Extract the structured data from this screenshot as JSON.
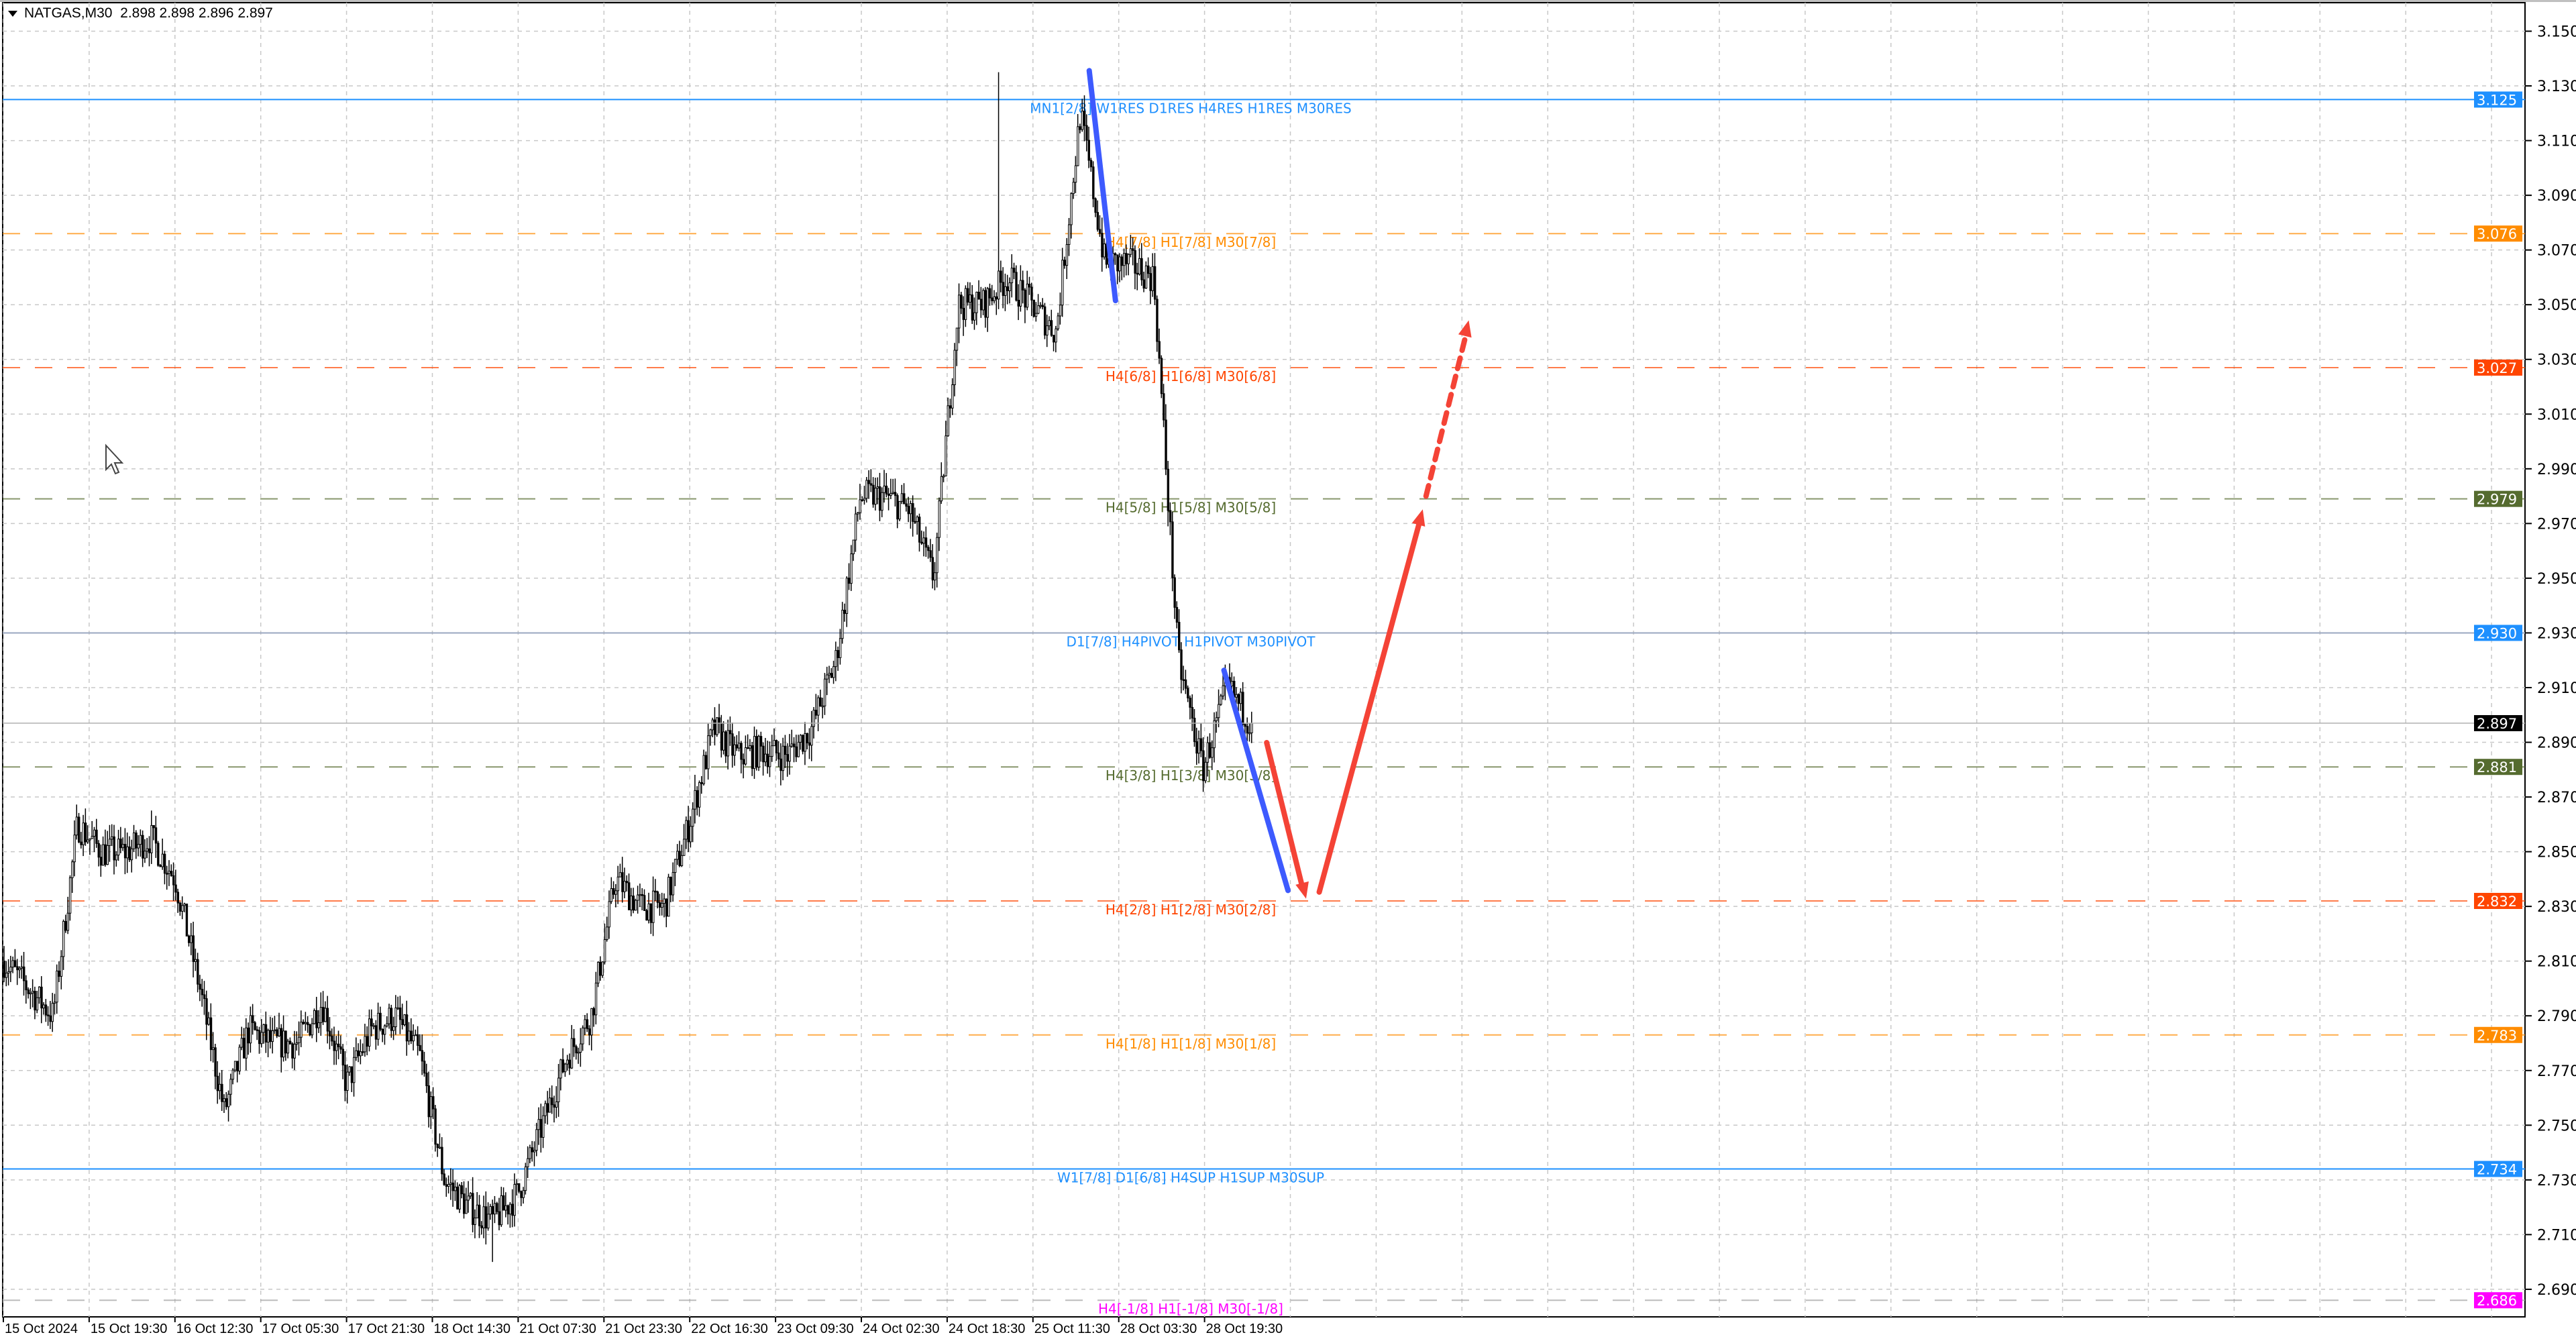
{
  "header": {
    "symbol": "NATGAS,M30",
    "ohlc": "2.898 2.898 2.896 2.897"
  },
  "chart_data": {
    "type": "candlestick",
    "symbol": "NATGAS",
    "timeframe": "M30",
    "ylim": [
      2.68,
      3.16
    ],
    "y_ticks": [
      "3.150",
      "3.130",
      "3.110",
      "3.090",
      "3.070",
      "3.050",
      "3.030",
      "3.010",
      "2.990",
      "2.970",
      "2.950",
      "2.930",
      "2.910",
      "2.890",
      "2.870",
      "2.850",
      "2.830",
      "2.810",
      "2.790",
      "2.770",
      "2.750",
      "2.730",
      "2.710",
      "2.690"
    ],
    "x_ticks": [
      "15 Oct 2024",
      "15 Oct 19:30",
      "16 Oct 12:30",
      "17 Oct 05:30",
      "17 Oct 21:30",
      "18 Oct 14:30",
      "21 Oct 07:30",
      "21 Oct 23:30",
      "22 Oct 16:30",
      "23 Oct 09:30",
      "24 Oct 02:30",
      "24 Oct 18:30",
      "25 Oct 11:30",
      "28 Oct 03:30",
      "28 Oct 19:30"
    ],
    "approx_close_path": [
      2.81,
      2.8,
      2.79,
      2.86,
      2.85,
      2.85,
      2.855,
      2.84,
      2.8,
      2.755,
      2.785,
      2.78,
      2.78,
      2.795,
      2.765,
      2.785,
      2.79,
      2.775,
      2.73,
      2.72,
      2.715,
      2.725,
      2.75,
      2.775,
      2.79,
      2.84,
      2.83,
      2.83,
      2.86,
      2.895,
      2.885,
      2.887,
      2.885,
      2.895,
      2.92,
      2.98,
      2.98,
      2.975,
      2.95,
      3.05,
      3.05,
      3.06,
      3.05,
      3.04,
      3.12,
      3.065,
      3.065,
      3.06,
      2.92,
      2.88,
      2.91,
      2.897
    ],
    "period_high": 3.135,
    "period_low": 2.7,
    "current_price": {
      "value": "2.897",
      "color": "#000000"
    },
    "levels": [
      {
        "price": 3.125,
        "price_label": "3.125",
        "color": "#1e90ff",
        "style": "solid",
        "label": "MN1[2/8] W1RES D1RES H4RES H1RES M30RES"
      },
      {
        "price": 3.076,
        "price_label": "3.076",
        "color": "#ff8c00",
        "style": "dashed",
        "label": "H4[7/8] H1[7/8] M30[7/8]"
      },
      {
        "price": 3.027,
        "price_label": "3.027",
        "color": "#ff4500",
        "style": "dashed",
        "label": "H4[6/8] H1[6/8] M30[6/8]"
      },
      {
        "price": 2.979,
        "price_label": "2.979",
        "color": "#556b2f",
        "style": "dashed",
        "label": "H4[5/8] H1[5/8] M30[5/8]"
      },
      {
        "price": 2.93,
        "price_label": "2.930",
        "color": "#1e90ff",
        "style": "solid-thin",
        "label": "D1[7/8] H4PIVOT H1PIVOT M30PIVOT"
      },
      {
        "price": 2.881,
        "price_label": "2.881",
        "color": "#556b2f",
        "style": "dashed",
        "label": "H4[3/8] H1[3/8] M30[3/8]"
      },
      {
        "price": 2.832,
        "price_label": "2.832",
        "color": "#ff4500",
        "style": "dashed",
        "label": "H4[2/8] H1[2/8] M30[2/8]"
      },
      {
        "price": 2.783,
        "price_label": "2.783",
        "color": "#ff8c00",
        "style": "dashed",
        "label": "H4[1/8] H1[1/8] M30[1/8]"
      },
      {
        "price": 2.734,
        "price_label": "2.734",
        "color": "#1e90ff",
        "style": "solid",
        "label": "W1[7/8] D1[6/8] H4SUP H1SUP M30SUP"
      },
      {
        "price": 2.686,
        "price_label": "2.686",
        "color": "#ff00ff",
        "style": "dashed",
        "label": "H4[-1/8] H1[-1/8] M30[-1/8]"
      }
    ],
    "grid": true,
    "colors": {
      "up_candle": "#ffffff",
      "down_candle": "#000000",
      "trend_blue": "#3d5afe",
      "forecast_red": "#f44336"
    }
  }
}
